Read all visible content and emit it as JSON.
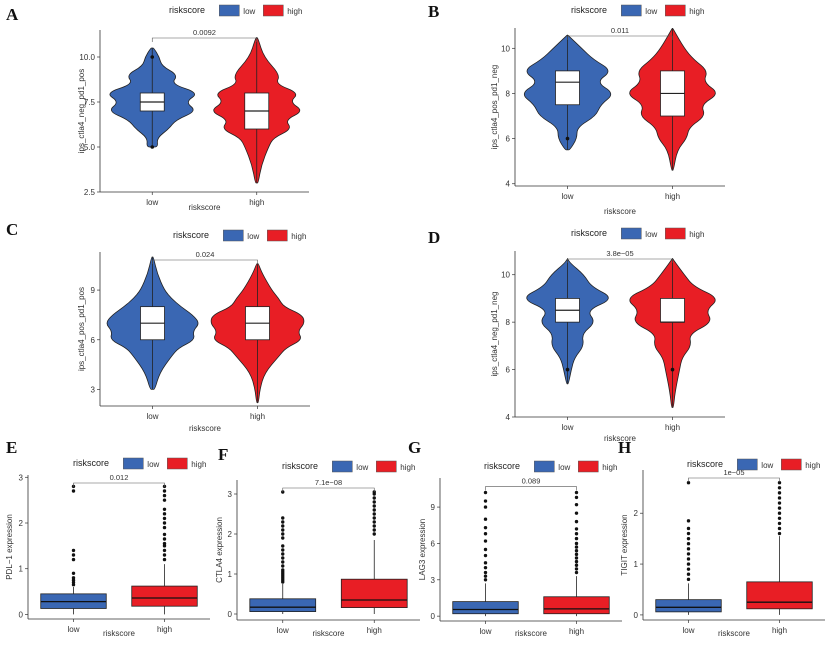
{
  "colors": {
    "low": "#3a67b3",
    "high": "#e81e25",
    "box_fill": "#ffffff",
    "axis": "#333333"
  },
  "chart_data": [
    {
      "panel": "A",
      "type": "violin",
      "legend": {
        "title": "riskscore",
        "entries": [
          "low",
          "high"
        ]
      },
      "xlabel": "riskscore",
      "ylabel": "ips_ctla4_neg_pd1_pos",
      "categories": [
        "low",
        "high"
      ],
      "yticks": [
        "2.5",
        "5.0",
        "7.5",
        "10.0"
      ],
      "ytick_values": [
        2.5,
        5,
        7.5,
        10
      ],
      "ylim": [
        2.5,
        11.5
      ],
      "pvalue": "0.0092",
      "groups": [
        {
          "name": "low",
          "min": 5,
          "max": 10.5,
          "q1": 7,
          "median": 7.5,
          "q3": 8,
          "outliers": [
            5,
            10
          ],
          "density": [
            [
              5,
              0.12
            ],
            [
              5.5,
              0.1
            ],
            [
              6,
              0.35
            ],
            [
              6.5,
              0.5
            ],
            [
              7,
              0.95
            ],
            [
              7.5,
              0.7
            ],
            [
              8,
              1
            ],
            [
              8.5,
              0.4
            ],
            [
              9,
              0.55
            ],
            [
              9.5,
              0.2
            ],
            [
              10,
              0.15
            ],
            [
              10.5,
              0.03
            ]
          ]
        },
        {
          "name": "high",
          "min": 3,
          "max": 11.1,
          "q1": 6,
          "median": 7,
          "q3": 8,
          "outliers": [],
          "density": [
            [
              3,
              0.03
            ],
            [
              4,
              0.1
            ],
            [
              5,
              0.25
            ],
            [
              5.5,
              0.35
            ],
            [
              6,
              0.75
            ],
            [
              6.5,
              0.6
            ],
            [
              7,
              1
            ],
            [
              7.5,
              0.7
            ],
            [
              8,
              0.9
            ],
            [
              8.5,
              0.4
            ],
            [
              9,
              0.5
            ],
            [
              10,
              0.15
            ],
            [
              11,
              0.03
            ]
          ]
        }
      ]
    },
    {
      "panel": "B",
      "type": "violin",
      "legend": {
        "title": "riskscore",
        "entries": [
          "low",
          "high"
        ]
      },
      "xlabel": "riskscore",
      "ylabel": "ips_ctla4_pos_pd1_neg",
      "categories": [
        "low",
        "high"
      ],
      "yticks": [
        "4",
        "6",
        "8",
        "10"
      ],
      "ytick_values": [
        4,
        6,
        8,
        10
      ],
      "ylim": [
        3.9,
        10.9
      ],
      "pvalue": "0.011",
      "groups": [
        {
          "name": "low",
          "min": 5.5,
          "max": 10.6,
          "q1": 7.5,
          "median": 8.5,
          "q3": 9,
          "outliers": [
            6
          ],
          "density": [
            [
              5.5,
              0.05
            ],
            [
              6,
              0.2
            ],
            [
              6.5,
              0.2
            ],
            [
              7,
              0.6
            ],
            [
              7.5,
              0.7
            ],
            [
              8,
              1
            ],
            [
              8.5,
              0.6
            ],
            [
              9,
              0.95
            ],
            [
              9.5,
              0.55
            ],
            [
              10,
              0.3
            ],
            [
              10.5,
              0.05
            ]
          ]
        },
        {
          "name": "high",
          "min": 4.6,
          "max": 10.9,
          "q1": 7,
          "median": 8,
          "q3": 9,
          "outliers": [],
          "density": [
            [
              4.6,
              0.02
            ],
            [
              5.5,
              0.1
            ],
            [
              6,
              0.3
            ],
            [
              6.5,
              0.35
            ],
            [
              7,
              0.7
            ],
            [
              7.5,
              0.6
            ],
            [
              8,
              1
            ],
            [
              8.5,
              0.65
            ],
            [
              9,
              0.75
            ],
            [
              9.5,
              0.45
            ],
            [
              10,
              0.25
            ],
            [
              10.8,
              0.03
            ]
          ]
        }
      ]
    },
    {
      "panel": "C",
      "type": "violin",
      "legend": {
        "title": "riskscore",
        "entries": [
          "low",
          "high"
        ]
      },
      "xlabel": "riskscore",
      "ylabel": "ips_ctla4_pos_pd1_pos",
      "categories": [
        "low",
        "high"
      ],
      "yticks": [
        "3",
        "6",
        "9"
      ],
      "ytick_values": [
        3,
        6,
        9
      ],
      "ylim": [
        2,
        11.3
      ],
      "pvalue": "0.024",
      "groups": [
        {
          "name": "low",
          "min": 3,
          "max": 11,
          "q1": 6,
          "median": 7,
          "q3": 8,
          "outliers": [],
          "density": [
            [
              3,
              0.05
            ],
            [
              4,
              0.15
            ],
            [
              5,
              0.4
            ],
            [
              5.5,
              0.55
            ],
            [
              6,
              0.9
            ],
            [
              6.5,
              0.85
            ],
            [
              7,
              1
            ],
            [
              7.5,
              0.85
            ],
            [
              8,
              0.6
            ],
            [
              8.5,
              0.4
            ],
            [
              9,
              0.25
            ],
            [
              10,
              0.1
            ],
            [
              11,
              0.02
            ]
          ]
        },
        {
          "name": "high",
          "min": 2.2,
          "max": 10.6,
          "q1": 6,
          "median": 7,
          "q3": 8,
          "outliers": [],
          "density": [
            [
              2.2,
              0.02
            ],
            [
              3,
              0.05
            ],
            [
              4,
              0.15
            ],
            [
              5,
              0.45
            ],
            [
              5.5,
              0.6
            ],
            [
              6,
              0.95
            ],
            [
              6.5,
              0.85
            ],
            [
              7,
              1
            ],
            [
              7.5,
              0.95
            ],
            [
              8,
              0.55
            ],
            [
              8.5,
              0.45
            ],
            [
              9,
              0.3
            ],
            [
              10,
              0.1
            ],
            [
              10.6,
              0.02
            ]
          ]
        }
      ]
    },
    {
      "panel": "D",
      "type": "violin",
      "legend": {
        "title": "riskscore",
        "entries": [
          "low",
          "high"
        ]
      },
      "xlabel": "riskscore",
      "ylabel": "ips_ctla4_neg_pd1_neg",
      "categories": [
        "low",
        "high"
      ],
      "yticks": [
        "4",
        "6",
        "8",
        "10"
      ],
      "ytick_values": [
        4,
        6,
        8,
        10
      ],
      "ylim": [
        4,
        11
      ],
      "pvalue": "3.8e−05",
      "groups": [
        {
          "name": "low",
          "min": 5.4,
          "max": 10.7,
          "q1": 8,
          "median": 8.5,
          "q3": 9,
          "outliers": [
            6
          ],
          "density": [
            [
              5.4,
              0.02
            ],
            [
              6,
              0.08
            ],
            [
              6.5,
              0.15
            ],
            [
              7,
              0.35
            ],
            [
              7.5,
              0.3
            ],
            [
              8,
              0.6
            ],
            [
              8.5,
              0.4
            ],
            [
              9,
              1
            ],
            [
              9.5,
              0.5
            ],
            [
              10,
              0.35
            ],
            [
              10.5,
              0.05
            ]
          ]
        },
        {
          "name": "high",
          "min": 4.4,
          "max": 10.7,
          "q1": 8,
          "median": 8,
          "q3": 9,
          "outliers": [
            6
          ],
          "density": [
            [
              4.4,
              0.02
            ],
            [
              5,
              0.05
            ],
            [
              6,
              0.15
            ],
            [
              6.5,
              0.2
            ],
            [
              7,
              0.4
            ],
            [
              7.5,
              0.35
            ],
            [
              8,
              0.85
            ],
            [
              8.5,
              0.7
            ],
            [
              9,
              1
            ],
            [
              9.5,
              0.45
            ],
            [
              10,
              0.25
            ],
            [
              10.6,
              0.03
            ]
          ]
        }
      ]
    },
    {
      "panel": "E",
      "type": "box",
      "legend": {
        "title": "riskscore",
        "entries": [
          "low",
          "high"
        ]
      },
      "xlabel": "riskscore",
      "ylabel": "PDL−1 expression",
      "categories": [
        "low",
        "high"
      ],
      "yticks": [
        "0",
        "1",
        "2",
        "3"
      ],
      "ytick_values": [
        0,
        1,
        2,
        3
      ],
      "ylim": [
        -0.1,
        3.05
      ],
      "pvalue": "0.012",
      "groups": [
        {
          "name": "low",
          "min": 0,
          "max": 0.6,
          "q1": 0.13,
          "median": 0.28,
          "q3": 0.45,
          "outliers": [
            0.65,
            0.7,
            0.75,
            0.8,
            0.9,
            1.2,
            1.3,
            1.4,
            2.7,
            2.8
          ]
        },
        {
          "name": "high",
          "min": 0,
          "max": 1.1,
          "q1": 0.18,
          "median": 0.36,
          "q3": 0.62,
          "outliers": [
            1.2,
            1.3,
            1.4,
            1.5,
            1.55,
            1.65,
            1.75,
            1.9,
            2.0,
            2.1,
            2.2,
            2.3,
            2.5,
            2.6,
            2.7,
            2.8
          ]
        }
      ]
    },
    {
      "panel": "F",
      "type": "box",
      "legend": {
        "title": "riskscore",
        "entries": [
          "low",
          "high"
        ]
      },
      "xlabel": "riskscore",
      "ylabel": "CTLA4 expression",
      "categories": [
        "low",
        "high"
      ],
      "yticks": [
        "0",
        "1",
        "2",
        "3"
      ],
      "ytick_values": [
        0,
        1,
        2,
        3
      ],
      "ylim": [
        -0.15,
        3.35
      ],
      "pvalue": "7.1e−08",
      "groups": [
        {
          "name": "low",
          "min": 0,
          "max": 0.75,
          "q1": 0.06,
          "median": 0.17,
          "q3": 0.38,
          "outliers": [
            0.8,
            0.85,
            0.9,
            0.95,
            1.0,
            1.05,
            1.1,
            1.2,
            1.3,
            1.4,
            1.5,
            1.6,
            1.7,
            1.9,
            2.0,
            2.1,
            2.2,
            2.3,
            2.4,
            3.05
          ]
        },
        {
          "name": "high",
          "min": 0,
          "max": 1.85,
          "q1": 0.16,
          "median": 0.35,
          "q3": 0.87,
          "outliers": [
            2.0,
            2.1,
            2.2,
            2.3,
            2.4,
            2.5,
            2.6,
            2.7,
            2.8,
            2.9,
            3.0,
            3.05
          ]
        }
      ]
    },
    {
      "panel": "G",
      "type": "box",
      "legend": {
        "title": "riskscore",
        "entries": [
          "low",
          "high"
        ]
      },
      "xlabel": "riskscore",
      "ylabel": "LAG3 expression",
      "categories": [
        "low",
        "high"
      ],
      "yticks": [
        "0",
        "3",
        "6",
        "9"
      ],
      "ytick_values": [
        0,
        3,
        6,
        9
      ],
      "ylim": [
        -0.4,
        11.4
      ],
      "pvalue": "0.089",
      "groups": [
        {
          "name": "low",
          "min": 0,
          "max": 2.7,
          "q1": 0.2,
          "median": 0.55,
          "q3": 1.2,
          "outliers": [
            3.0,
            3.3,
            3.6,
            4.0,
            4.4,
            5.0,
            5.5,
            6.2,
            6.8,
            7.3,
            8.0,
            9.0,
            9.5,
            10.2
          ]
        },
        {
          "name": "high",
          "min": 0,
          "max": 3.3,
          "q1": 0.2,
          "median": 0.6,
          "q3": 1.6,
          "outliers": [
            3.6,
            3.9,
            4.2,
            4.5,
            4.8,
            5.1,
            5.4,
            5.7,
            6.0,
            6.4,
            6.8,
            7.2,
            7.8,
            8.5,
            9.2,
            9.8,
            10.2
          ]
        }
      ]
    },
    {
      "panel": "H",
      "type": "box",
      "legend": {
        "title": "riskscore",
        "entries": [
          "low",
          "high"
        ]
      },
      "xlabel": "riskscore",
      "ylabel": "TIGIT expression",
      "categories": [
        "low",
        "high"
      ],
      "yticks": [
        "0",
        "1",
        "2"
      ],
      "ytick_values": [
        0,
        1,
        2
      ],
      "ylim": [
        -0.1,
        2.85
      ],
      "pvalue": "1e−05",
      "groups": [
        {
          "name": "low",
          "min": 0,
          "max": 0.62,
          "q1": 0.06,
          "median": 0.15,
          "q3": 0.3,
          "outliers": [
            0.7,
            0.8,
            0.9,
            1.0,
            1.1,
            1.2,
            1.3,
            1.4,
            1.5,
            1.6,
            1.7,
            1.85,
            2.6
          ]
        },
        {
          "name": "high",
          "min": 0,
          "max": 1.55,
          "q1": 0.12,
          "median": 0.25,
          "q3": 0.65,
          "outliers": [
            1.6,
            1.7,
            1.8,
            1.9,
            2.0,
            2.1,
            2.2,
            2.3,
            2.4,
            2.5,
            2.6
          ]
        }
      ]
    }
  ]
}
